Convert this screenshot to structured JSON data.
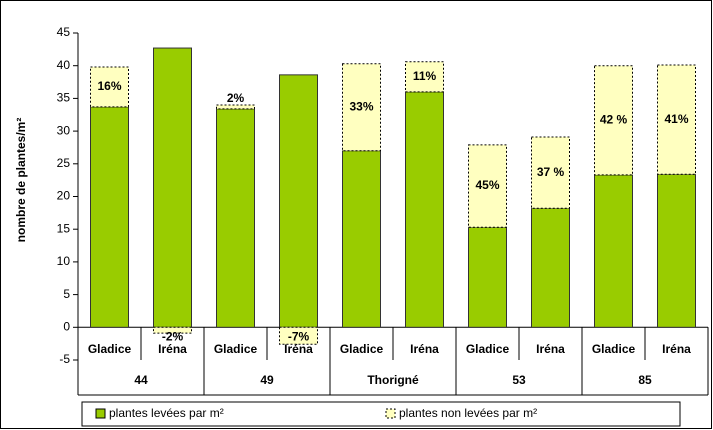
{
  "chart_data": {
    "type": "stacked_bar",
    "y_label": "nombre de plantes/m²",
    "categories": [
      "Gladice",
      "Iréna",
      "Gladice",
      "Iréna",
      "Gladice",
      "Iréna",
      "Gladice",
      "Iréna",
      "Gladice",
      "Iréna"
    ],
    "groups": [
      "44",
      "49",
      "Thorigné",
      "53",
      "85"
    ],
    "series": [
      {
        "name": "plantes levées par m²",
        "color": "#99cc00",
        "values": [
          33.7,
          42.7,
          33.4,
          38.6,
          27.0,
          36.0,
          15.3,
          18.2,
          23.3,
          23.4
        ]
      },
      {
        "name": "plantes non levées par m²",
        "color": "#ffffc0",
        "values": [
          6.1,
          -0.9,
          0.6,
          -2.6,
          13.3,
          4.6,
          12.6,
          10.9,
          16.7,
          16.7
        ],
        "percent_labels": [
          "16%",
          "-2%",
          "2%",
          "-7%",
          "33%",
          "11%",
          "45%",
          "37 %",
          "42 %",
          "41%"
        ]
      }
    ],
    "ylim": [
      -5,
      45
    ],
    "yticks": [
      -5,
      0,
      5,
      10,
      15,
      20,
      25,
      30,
      35,
      40,
      45
    ],
    "grid": false
  }
}
